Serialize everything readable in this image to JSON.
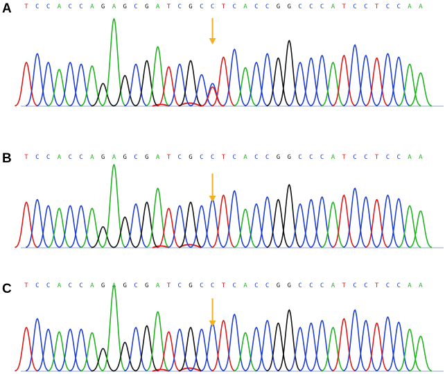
{
  "colors": {
    "A": "#1fb41f",
    "C": "#1f3fd6",
    "G": "#111111",
    "T": "#e01818",
    "arrow": "#f0b020"
  },
  "chart_data": [
    {
      "type": "line",
      "panel": "A",
      "sequence": [
        "T",
        "C",
        "C",
        "A",
        "C",
        "C",
        "A",
        "G",
        "A",
        "G",
        "C",
        "G",
        "A",
        "T",
        "C",
        "G",
        "C",
        "C",
        "T",
        "C",
        "A",
        "C",
        "C",
        "G",
        "G",
        "C",
        "C",
        "C",
        "A",
        "T",
        "C",
        "C",
        "T",
        "C",
        "C",
        "A",
        "A"
      ],
      "peaks": [
        0.5,
        0.6,
        0.5,
        0.42,
        0.5,
        0.48,
        0.46,
        0.26,
        1.0,
        0.35,
        0.48,
        0.52,
        0.68,
        0.45,
        0.48,
        0.52,
        0.36,
        0.26,
        0.56,
        0.65,
        0.44,
        0.5,
        0.6,
        0.55,
        0.75,
        0.5,
        0.55,
        0.58,
        0.5,
        0.58,
        0.7,
        0.58,
        0.55,
        0.6,
        0.56,
        0.48,
        0.38
      ],
      "secondary_peaks": [
        {
          "index": 17,
          "base": "T",
          "height": 0.22
        }
      ],
      "arrow_index": 17,
      "ylim": [
        0,
        1
      ]
    },
    {
      "type": "line",
      "panel": "B",
      "sequence": [
        "T",
        "C",
        "C",
        "A",
        "C",
        "C",
        "A",
        "G",
        "A",
        "G",
        "C",
        "G",
        "A",
        "T",
        "C",
        "G",
        "C",
        "C",
        "T",
        "C",
        "A",
        "C",
        "C",
        "G",
        "G",
        "C",
        "C",
        "C",
        "A",
        "T",
        "C",
        "C",
        "T",
        "C",
        "C",
        "A",
        "A"
      ],
      "peaks": [
        0.52,
        0.55,
        0.48,
        0.45,
        0.48,
        0.48,
        0.45,
        0.24,
        0.95,
        0.35,
        0.5,
        0.52,
        0.68,
        0.45,
        0.48,
        0.52,
        0.48,
        0.55,
        0.6,
        0.65,
        0.44,
        0.5,
        0.58,
        0.55,
        0.72,
        0.5,
        0.55,
        0.58,
        0.52,
        0.6,
        0.68,
        0.58,
        0.55,
        0.6,
        0.56,
        0.48,
        0.42
      ],
      "secondary_peaks": [],
      "arrow_index": 17,
      "ylim": [
        0,
        1
      ]
    },
    {
      "type": "line",
      "panel": "C",
      "sequence": [
        "T",
        "C",
        "C",
        "A",
        "C",
        "C",
        "A",
        "G",
        "A",
        "G",
        "C",
        "G",
        "A",
        "T",
        "C",
        "G",
        "C",
        "C",
        "T",
        "C",
        "A",
        "C",
        "C",
        "G",
        "G",
        "C",
        "C",
        "C",
        "A",
        "T",
        "C",
        "C",
        "T",
        "C",
        "C",
        "A",
        "A"
      ],
      "peaks": [
        0.5,
        0.6,
        0.48,
        0.45,
        0.48,
        0.48,
        0.44,
        0.26,
        0.98,
        0.33,
        0.5,
        0.52,
        0.68,
        0.45,
        0.48,
        0.5,
        0.48,
        0.55,
        0.58,
        0.65,
        0.44,
        0.5,
        0.58,
        0.55,
        0.7,
        0.5,
        0.55,
        0.58,
        0.5,
        0.6,
        0.7,
        0.58,
        0.55,
        0.62,
        0.56,
        0.48,
        0.4
      ],
      "secondary_peaks": [],
      "arrow_index": 17,
      "ylim": [
        0,
        1
      ]
    }
  ]
}
